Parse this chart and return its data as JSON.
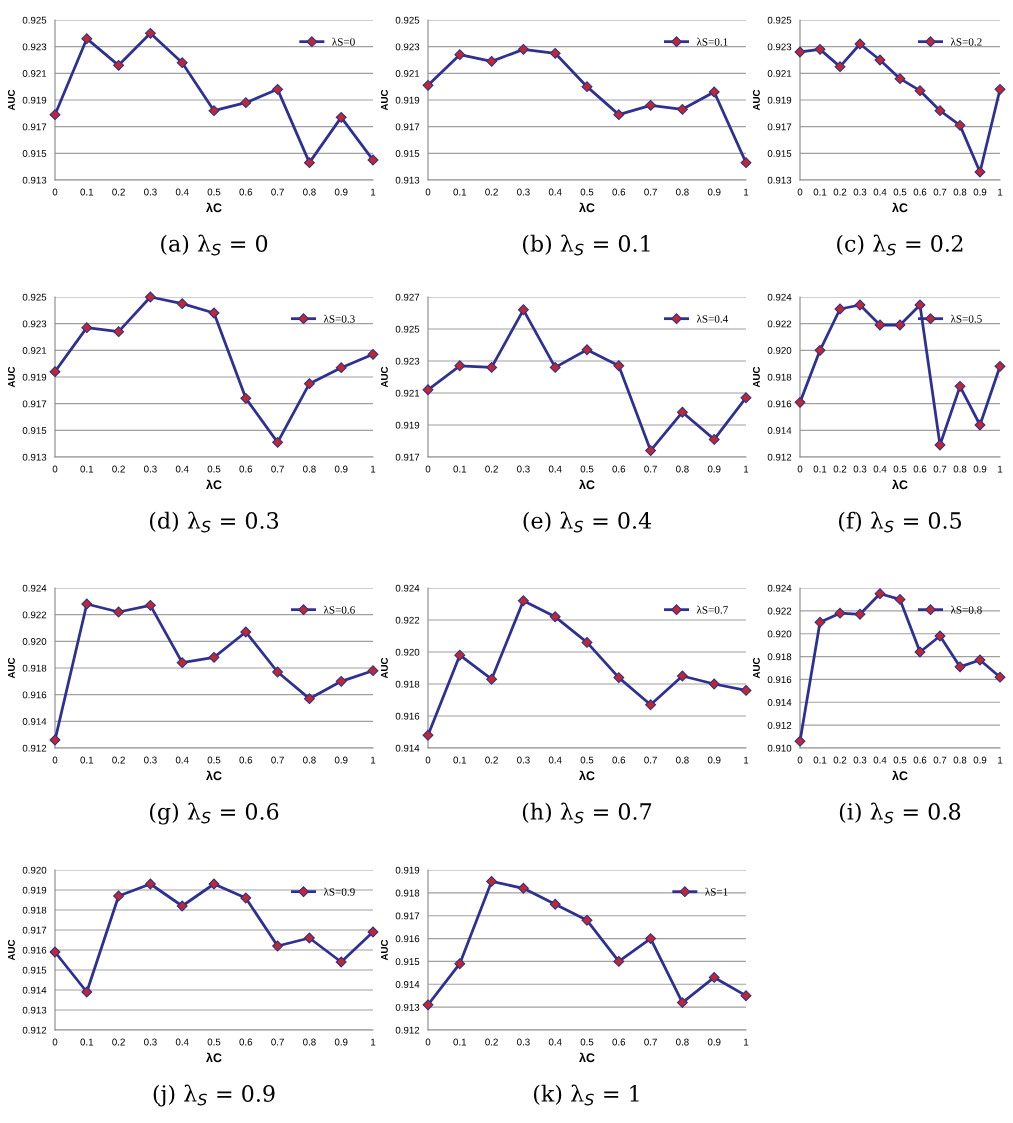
{
  "chart_data": [
    {
      "type": "line",
      "title": "(a) λ$_{S}$ = 0",
      "xlabel": "λC",
      "ylabel": "AUC",
      "x": [
        0,
        0.1,
        0.2,
        0.3,
        0.4,
        0.5,
        0.6,
        0.7,
        0.8,
        0.9,
        1
      ],
      "xlim": [
        0,
        1
      ],
      "xticks": [
        0,
        0.1,
        0.2,
        0.3,
        0.4,
        0.5,
        0.6,
        0.7,
        0.8,
        0.9,
        1
      ],
      "ylim": [
        0.913,
        0.925
      ],
      "yticks": [
        0.913,
        0.915,
        0.917,
        0.919,
        0.921,
        0.923,
        0.925
      ],
      "grid": "y",
      "legend": "top right",
      "marker": "diamond",
      "line_style": "solid",
      "series": [
        {
          "name": "λS=0",
          "color": "#2e3192",
          "values": [
            0.9179,
            0.9236,
            0.9216,
            0.924,
            0.9218,
            0.9182,
            0.9188,
            0.9198,
            0.9143,
            0.9177,
            0.9145
          ]
        }
      ]
    },
    {
      "type": "line",
      "title": "(b) λ$_{S}$ = 0.1",
      "xlabel": "λC",
      "ylabel": "AUC",
      "x": [
        0,
        0.1,
        0.2,
        0.3,
        0.4,
        0.5,
        0.6,
        0.7,
        0.8,
        0.9,
        1
      ],
      "xlim": [
        0,
        1
      ],
      "xticks": [
        0,
        0.1,
        0.2,
        0.3,
        0.4,
        0.5,
        0.6,
        0.7,
        0.8,
        0.9,
        1
      ],
      "ylim": [
        0.913,
        0.925
      ],
      "yticks": [
        0.913,
        0.915,
        0.917,
        0.919,
        0.921,
        0.923,
        0.925
      ],
      "grid": "y",
      "legend": "top right",
      "marker": "diamond",
      "line_style": "solid",
      "series": [
        {
          "name": "λS=0.1",
          "color": "#2e3192",
          "values": [
            0.9201,
            0.9224,
            0.9219,
            0.9228,
            0.9225,
            0.92,
            0.9179,
            0.9186,
            0.9183,
            0.9196,
            0.9143
          ]
        }
      ]
    },
    {
      "type": "line",
      "title": "(c) λ$_{S}$ = 0.2",
      "xlabel": "λC",
      "ylabel": "AUC",
      "x": [
        0,
        0.1,
        0.2,
        0.3,
        0.4,
        0.5,
        0.6,
        0.7,
        0.8,
        0.9,
        1
      ],
      "xlim": [
        0,
        1
      ],
      "xticks": [
        0,
        0.1,
        0.2,
        0.3,
        0.4,
        0.5,
        0.6,
        0.7,
        0.8,
        0.9,
        1
      ],
      "ylim": [
        0.913,
        0.925
      ],
      "yticks": [
        0.913,
        0.915,
        0.917,
        0.919,
        0.921,
        0.923,
        0.925
      ],
      "grid": "y",
      "legend": "top right",
      "marker": "diamond",
      "line_style": "solid",
      "series": [
        {
          "name": "λS=0.2",
          "color": "#2e3192",
          "values": [
            0.9226,
            0.9228,
            0.9215,
            0.9232,
            0.922,
            0.9206,
            0.9197,
            0.9182,
            0.9171,
            0.9136,
            0.9198
          ]
        }
      ]
    },
    {
      "type": "line",
      "title": "(d) λ$_{S}$ = 0.3",
      "xlabel": "λC",
      "ylabel": "AUC",
      "x": [
        0,
        0.1,
        0.2,
        0.3,
        0.4,
        0.5,
        0.6,
        0.7,
        0.8,
        0.9,
        1
      ],
      "xlim": [
        0,
        1
      ],
      "xticks": [
        0,
        0.1,
        0.2,
        0.3,
        0.4,
        0.5,
        0.6,
        0.7,
        0.8,
        0.9,
        1
      ],
      "ylim": [
        0.913,
        0.925
      ],
      "yticks": [
        0.913,
        0.915,
        0.917,
        0.919,
        0.921,
        0.923,
        0.925
      ],
      "grid": "y",
      "legend": "top right",
      "marker": "diamond",
      "line_style": "solid",
      "series": [
        {
          "name": "λS=0.3",
          "color": "#2e3192",
          "values": [
            0.9194,
            0.9227,
            0.9224,
            0.925,
            0.9245,
            0.9238,
            0.9174,
            0.9141,
            0.9185,
            0.9197,
            0.9207
          ]
        }
      ]
    },
    {
      "type": "line",
      "title": "(e) λ$_{S}$ = 0.4",
      "xlabel": "λC",
      "ylabel": "AUC",
      "x": [
        0,
        0.1,
        0.2,
        0.3,
        0.4,
        0.5,
        0.6,
        0.7,
        0.8,
        0.9,
        1
      ],
      "xlim": [
        0,
        1
      ],
      "xticks": [
        0,
        0.1,
        0.2,
        0.3,
        0.4,
        0.5,
        0.6,
        0.7,
        0.8,
        0.9,
        1
      ],
      "ylim": [
        0.917,
        0.927
      ],
      "yticks": [
        0.917,
        0.919,
        0.921,
        0.923,
        0.925,
        0.927
      ],
      "grid": "y",
      "legend": "top right",
      "marker": "diamond",
      "line_style": "solid",
      "series": [
        {
          "name": "λS=0.4",
          "color": "#2e3192",
          "values": [
            0.9212,
            0.9227,
            0.9226,
            0.9262,
            0.9226,
            0.9237,
            0.9227,
            0.9174,
            0.9198,
            0.9181,
            0.9207
          ]
        }
      ]
    },
    {
      "type": "line",
      "title": "(f) λ$_{S}$ = 0.5",
      "xlabel": "λC",
      "ylabel": "AUC",
      "x": [
        0,
        0.1,
        0.2,
        0.3,
        0.4,
        0.5,
        0.6,
        0.7,
        0.8,
        0.9,
        1
      ],
      "xlim": [
        0,
        1
      ],
      "xticks": [
        0,
        0.1,
        0.2,
        0.3,
        0.4,
        0.5,
        0.6,
        0.7,
        0.8,
        0.9,
        1
      ],
      "ylim": [
        0.912,
        0.924
      ],
      "yticks": [
        {
          "value": 0.912,
          "label": "0.912"
        },
        {
          "value": 0.914,
          "label": "0.914"
        },
        {
          "value": 0.916,
          "label": "0.916"
        },
        {
          "value": 0.918,
          "label": "0.918"
        },
        {
          "value": 0.92,
          "label": "0.920"
        },
        {
          "value": 0.922,
          "label": "0.922"
        },
        {
          "value": 0.924,
          "label": "0.924"
        }
      ],
      "grid": "y",
      "legend": "top right",
      "marker": "diamond",
      "line_style": "solid",
      "series": [
        {
          "name": "λS=0.5",
          "color": "#2e3192",
          "values": [
            0.9161,
            0.92,
            0.9231,
            0.9234,
            0.9219,
            0.9219,
            0.9234,
            0.9129,
            0.9173,
            0.9144,
            0.9188
          ]
        }
      ]
    },
    {
      "type": "line",
      "title": "(g) λ$_{S}$ = 0.6",
      "xlabel": "λC",
      "ylabel": "AUC",
      "x": [
        0,
        0.1,
        0.2,
        0.3,
        0.4,
        0.5,
        0.6,
        0.7,
        0.8,
        0.9,
        1
      ],
      "xlim": [
        0,
        1
      ],
      "xticks": [
        0,
        0.1,
        0.2,
        0.3,
        0.4,
        0.5,
        0.6,
        0.7,
        0.8,
        0.9,
        1
      ],
      "ylim": [
        0.912,
        0.924
      ],
      "yticks": [
        {
          "value": 0.912,
          "label": "0.912"
        },
        {
          "value": 0.914,
          "label": "0.914"
        },
        {
          "value": 0.916,
          "label": "0.916"
        },
        {
          "value": 0.918,
          "label": "0.918"
        },
        {
          "value": 0.92,
          "label": "0.920"
        },
        {
          "value": 0.922,
          "label": "0.922"
        },
        {
          "value": 0.924,
          "label": "0.924"
        }
      ],
      "grid": "y",
      "legend": "top right",
      "marker": "diamond",
      "line_style": "solid",
      "series": [
        {
          "name": "λS=0.6",
          "color": "#2e3192",
          "values": [
            0.9126,
            0.9228,
            0.9222,
            0.9227,
            0.9184,
            0.9188,
            0.9207,
            0.9177,
            0.9157,
            0.917,
            0.9178
          ]
        }
      ]
    },
    {
      "type": "line",
      "title": "(h) λ$_{S}$ = 0.7",
      "xlabel": "λC",
      "ylabel": "AUC",
      "x": [
        0,
        0.1,
        0.2,
        0.3,
        0.4,
        0.5,
        0.6,
        0.7,
        0.8,
        0.9,
        1
      ],
      "xlim": [
        0,
        1
      ],
      "xticks": [
        0,
        0.1,
        0.2,
        0.3,
        0.4,
        0.5,
        0.6,
        0.7,
        0.8,
        0.9,
        1
      ],
      "ylim": [
        0.914,
        0.924
      ],
      "yticks": [
        {
          "value": 0.914,
          "label": "0.914"
        },
        {
          "value": 0.916,
          "label": "0.916"
        },
        {
          "value": 0.918,
          "label": "0.918"
        },
        {
          "value": 0.92,
          "label": "0.920"
        },
        {
          "value": 0.922,
          "label": "0.922"
        },
        {
          "value": 0.924,
          "label": "0.924"
        }
      ],
      "grid": "y",
      "legend": "top right",
      "marker": "diamond",
      "line_style": "solid",
      "series": [
        {
          "name": "λS=0.7",
          "color": "#2e3192",
          "values": [
            0.9148,
            0.9198,
            0.9183,
            0.9232,
            0.9222,
            0.9206,
            0.9184,
            0.9167,
            0.9185,
            0.918,
            0.9176
          ]
        }
      ]
    },
    {
      "type": "line",
      "title": "(i) λ$_{S}$ = 0.8",
      "xlabel": "λC",
      "ylabel": "AUC",
      "x": [
        0,
        0.1,
        0.2,
        0.3,
        0.4,
        0.5,
        0.6,
        0.7,
        0.8,
        0.9,
        1
      ],
      "xlim": [
        0,
        1
      ],
      "xticks": [
        0,
        0.1,
        0.2,
        0.3,
        0.4,
        0.5,
        0.6,
        0.7,
        0.8,
        0.9,
        1
      ],
      "ylim": [
        0.91,
        0.924
      ],
      "yticks": [
        {
          "value": 0.91,
          "label": "0.910"
        },
        {
          "value": 0.912,
          "label": "0.912"
        },
        {
          "value": 0.914,
          "label": "0.914"
        },
        {
          "value": 0.916,
          "label": "0.916"
        },
        {
          "value": 0.918,
          "label": "0.918"
        },
        {
          "value": 0.92,
          "label": "0.920"
        },
        {
          "value": 0.922,
          "label": "0.922"
        },
        {
          "value": 0.924,
          "label": "0.924"
        }
      ],
      "grid": "y",
      "legend": "top right",
      "marker": "diamond",
      "line_style": "solid",
      "series": [
        {
          "name": "λS=0.8",
          "color": "#2e3192",
          "values": [
            0.9106,
            0.921,
            0.9218,
            0.9217,
            0.9235,
            0.923,
            0.9184,
            0.9198,
            0.9171,
            0.9177,
            0.9162
          ]
        }
      ]
    },
    {
      "type": "line",
      "title": "(j) λ$_{S}$ = 0.9",
      "xlabel": "λC",
      "ylabel": "AUC",
      "x": [
        0,
        0.1,
        0.2,
        0.3,
        0.4,
        0.5,
        0.6,
        0.7,
        0.8,
        0.9,
        1
      ],
      "xlim": [
        0,
        1
      ],
      "xticks": [
        0,
        0.1,
        0.2,
        0.3,
        0.4,
        0.5,
        0.6,
        0.7,
        0.8,
        0.9,
        1
      ],
      "ylim": [
        0.912,
        0.92
      ],
      "yticks": [
        {
          "value": 0.912,
          "label": "0.912"
        },
        {
          "value": 0.913,
          "label": "0.913"
        },
        {
          "value": 0.914,
          "label": "0.914"
        },
        {
          "value": 0.915,
          "label": "0.915"
        },
        {
          "value": 0.916,
          "label": "0.916"
        },
        {
          "value": 0.917,
          "label": "0.917"
        },
        {
          "value": 0.918,
          "label": "0.918"
        },
        {
          "value": 0.919,
          "label": "0.919"
        },
        {
          "value": 0.92,
          "label": "0.920"
        }
      ],
      "grid": "y",
      "legend": "top right",
      "marker": "diamond",
      "line_style": "solid",
      "series": [
        {
          "name": "λS=0.9",
          "color": "#2e3192",
          "values": [
            0.9159,
            0.9139,
            0.9187,
            0.9193,
            0.9182,
            0.9193,
            0.9186,
            0.9162,
            0.9166,
            0.9154,
            0.9169
          ]
        }
      ]
    },
    {
      "type": "line",
      "title": "(k) λ$_{S}$ = 1",
      "xlabel": "λC",
      "ylabel": "AUC",
      "x": [
        0,
        0.1,
        0.2,
        0.3,
        0.4,
        0.5,
        0.6,
        0.7,
        0.8,
        0.9,
        1
      ],
      "xlim": [
        0,
        1
      ],
      "xticks": [
        0,
        0.1,
        0.2,
        0.3,
        0.4,
        0.5,
        0.6,
        0.7,
        0.8,
        0.9,
        1
      ],
      "ylim": [
        0.912,
        0.919
      ],
      "yticks": [
        0.912,
        0.913,
        0.914,
        0.915,
        0.916,
        0.917,
        0.918,
        0.919
      ],
      "grid": "y",
      "legend": "top right",
      "marker": "diamond",
      "line_style": "solid",
      "series": [
        {
          "name": "λS=1",
          "color": "#2e3192",
          "values": [
            0.9131,
            0.9149,
            0.9185,
            0.9182,
            0.9175,
            0.9168,
            0.915,
            0.916,
            0.9132,
            0.9143,
            0.9135
          ]
        }
      ]
    }
  ]
}
